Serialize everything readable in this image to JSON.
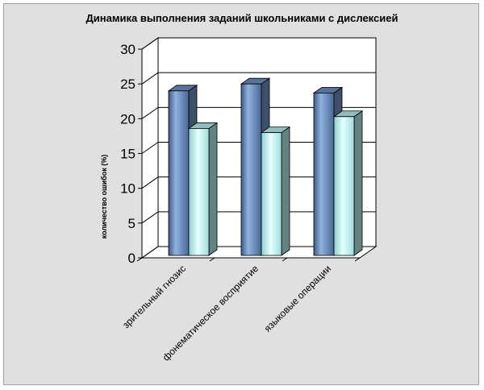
{
  "chart_data": {
    "type": "bar",
    "style": "3d-clustered",
    "title": "Динамика выполнения заданий школьниками с дислексией",
    "xlabel": "",
    "ylabel": "количество ошибок (%)",
    "ylim": [
      0,
      30
    ],
    "yticks": [
      "0",
      "5",
      "10",
      "15",
      "20",
      "25",
      "30"
    ],
    "categories": [
      "зрительный гнозис",
      "фонематическое восприятие",
      "языковые операции"
    ],
    "series": [
      {
        "values": [
          24,
          25,
          23.7
        ],
        "color": "#6f8fbf"
      },
      {
        "values": [
          18.6,
          18,
          20.3
        ],
        "color": "#b8ecec"
      }
    ],
    "grid": true,
    "legend": "none"
  }
}
